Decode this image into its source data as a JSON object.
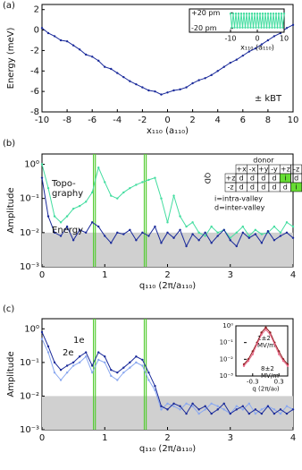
{
  "chart_data": [
    {
      "type": "line",
      "panel_label": "(a)",
      "ylabel": "Energy (meV)",
      "xlabel": "x₁₁₀ (a₁₁₀)",
      "annotation": "± kBT",
      "x": [
        -10,
        -9.5,
        -9,
        -8.5,
        -8,
        -7.5,
        -7,
        -6.5,
        -6,
        -5.5,
        -5,
        -4.5,
        -4,
        -3.5,
        -3,
        -2.5,
        -2,
        -1.5,
        -1,
        -0.5,
        0,
        0.5,
        1,
        1.5,
        2,
        2.5,
        3,
        3.5,
        4,
        4.5,
        5,
        5.5,
        6,
        6.5,
        7,
        7.5,
        8,
        8.5,
        9,
        9.5,
        10
      ],
      "series": [
        {
          "name": null,
          "color": "#1a2a9a",
          "values": [
            0.2,
            -0.3,
            -0.6,
            -1.0,
            -1.1,
            -1.5,
            -1.9,
            -2.4,
            -2.6,
            -3.0,
            -3.6,
            -3.8,
            -4.2,
            -4.6,
            -5.0,
            -5.3,
            -5.6,
            -5.9,
            -6.0,
            -6.3,
            -6.1,
            -5.9,
            -5.8,
            -5.6,
            -5.2,
            -4.9,
            -4.7,
            -4.4,
            -4.0,
            -3.6,
            -3.2,
            -2.9,
            -2.5,
            -2.1,
            -1.8,
            -1.4,
            -1.0,
            -0.6,
            -0.3,
            0.2,
            0.5
          ]
        }
      ],
      "xlim": [
        -10,
        10
      ],
      "xticks": [
        -10,
        -8,
        -6,
        -4,
        -2,
        0,
        2,
        4,
        6,
        8,
        10
      ],
      "ylim": [
        -8,
        2.5
      ],
      "yticks": [
        -8,
        -6,
        -4,
        -2,
        0,
        2
      ]
    },
    {
      "type": "line",
      "xlabel": "x₁₁₀ (a₁₁₀)",
      "x": [
        -10,
        -9.5,
        -9,
        -8.5,
        -8,
        -7.5,
        -7,
        -6.5,
        -6,
        -5.5,
        -5,
        -4.5,
        -4,
        -3.5,
        -3,
        -2.5,
        -2,
        -1.5,
        -1,
        -0.5,
        0,
        0.5,
        1,
        1.5,
        2,
        2.5,
        3,
        3.5,
        4,
        4.5,
        5,
        5.5,
        6,
        6.5,
        7,
        7.5,
        8,
        8.5,
        9,
        9.5,
        10
      ],
      "series": [
        {
          "name": null,
          "color": "#44dda0",
          "values": [
            18,
            -18,
            18,
            -18,
            18,
            -18,
            18,
            -18,
            18,
            -18,
            18,
            -18,
            18,
            -18,
            18,
            -18,
            18,
            -18,
            18,
            -18,
            18,
            -18,
            18,
            -18,
            18,
            -18,
            18,
            -18,
            18,
            -18,
            18,
            -18,
            18,
            -18,
            18,
            -18,
            18,
            -18,
            18,
            -18,
            18
          ]
        }
      ],
      "xlim": [
        -10,
        10
      ],
      "xticks": [
        -10,
        0,
        10
      ],
      "ylim": [
        -30,
        30
      ],
      "yticks": [
        {
          "value": 20,
          "label": "+20 pm"
        },
        {
          "value": -20,
          "label": "-20 pm"
        }
      ]
    },
    {
      "type": "line",
      "panel_label": "(b)",
      "ylabel": "Amplitude",
      "xlabel": "q₁₁₀ (2π/a₁₁₀)",
      "log_y": true,
      "shade_below": 0.01,
      "vlines": [
        0.82,
        0.85,
        1.63,
        1.66
      ],
      "vline_color": "#55cc33",
      "x": [
        0,
        0.1,
        0.2,
        0.3,
        0.4,
        0.5,
        0.6,
        0.7,
        0.8,
        0.9,
        1,
        1.1,
        1.2,
        1.3,
        1.4,
        1.5,
        1.6,
        1.7,
        1.8,
        1.9,
        2,
        2.1,
        2.2,
        2.3,
        2.4,
        2.5,
        2.6,
        2.7,
        2.8,
        2.9,
        3,
        3.1,
        3.2,
        3.3,
        3.4,
        3.5,
        3.6,
        3.7,
        3.8,
        3.9,
        4
      ],
      "series": [
        {
          "name": [
            "Topo-",
            "graphy"
          ],
          "color": "#44dda0",
          "values": [
            1.0,
            0.2,
            0.03,
            0.02,
            0.03,
            0.05,
            0.06,
            0.08,
            0.15,
            0.8,
            0.3,
            0.12,
            0.1,
            0.15,
            0.2,
            0.25,
            0.3,
            0.35,
            0.4,
            0.1,
            0.02,
            0.12,
            0.03,
            0.015,
            0.02,
            0.01,
            0.008,
            0.015,
            0.01,
            0.012,
            0.007,
            0.01,
            0.015,
            0.008,
            0.012,
            0.009,
            0.01,
            0.015,
            0.01,
            0.02,
            0.015
          ]
        },
        {
          "name": "Energy",
          "color": "#1a2a9a",
          "values": [
            0.4,
            0.03,
            0.01,
            0.008,
            0.015,
            0.006,
            0.012,
            0.01,
            0.02,
            0.015,
            0.008,
            0.005,
            0.01,
            0.009,
            0.012,
            0.006,
            0.01,
            0.008,
            0.015,
            0.005,
            0.01,
            0.007,
            0.012,
            0.004,
            0.009,
            0.006,
            0.01,
            0.005,
            0.008,
            0.012,
            0.006,
            0.004,
            0.01,
            0.007,
            0.009,
            0.005,
            0.011,
            0.006,
            0.008,
            0.01,
            0.007
          ]
        }
      ],
      "xlim": [
        0,
        4
      ],
      "xticks": [
        0,
        1,
        2,
        3,
        4
      ],
      "ylim": [
        0.001,
        2
      ],
      "yticks": [
        {
          "value": 0.001,
          "label": "10⁻³"
        },
        {
          "value": 0.01,
          "label": "10⁻²"
        },
        {
          "value": 0.1,
          "label": "10⁻¹"
        },
        {
          "value": 1,
          "label": "10⁰"
        }
      ],
      "table": {
        "header": "donor",
        "row_header": "QD",
        "columns": [
          "+x",
          "-x",
          "+y",
          "-y",
          "+z",
          "-z"
        ],
        "rows": [
          [
            "+z",
            "d",
            "d",
            "d",
            "d",
            "i",
            "d"
          ],
          [
            "-z",
            "d",
            "d",
            "d",
            "d",
            "d",
            "i"
          ]
        ],
        "notes": [
          "i=intra-valley",
          "d=inter-valley"
        ]
      }
    },
    {
      "type": "line",
      "panel_label": "(c)",
      "ylabel": "Amplitude",
      "xlabel": "q₁₁₀ (2π/a₁₁₀)",
      "log_y": true,
      "shade_below": 0.01,
      "vlines": [
        0.82,
        0.85,
        1.63,
        1.66
      ],
      "vline_color": "#55cc33",
      "x": [
        0,
        0.1,
        0.2,
        0.3,
        0.4,
        0.5,
        0.6,
        0.7,
        0.8,
        0.9,
        1,
        1.1,
        1.2,
        1.3,
        1.4,
        1.5,
        1.6,
        1.7,
        1.8,
        1.9,
        2,
        2.1,
        2.2,
        2.3,
        2.4,
        2.5,
        2.6,
        2.7,
        2.8,
        2.9,
        3,
        3.1,
        3.2,
        3.3,
        3.4,
        3.5,
        3.6,
        3.7,
        3.8,
        3.9,
        4
      ],
      "series": [
        {
          "name": "1e",
          "color": "#8aa8f0",
          "values": [
            0.5,
            0.2,
            0.05,
            0.03,
            0.05,
            0.08,
            0.1,
            0.15,
            0.05,
            0.12,
            0.1,
            0.04,
            0.03,
            0.05,
            0.07,
            0.1,
            0.08,
            0.03,
            0.015,
            0.004,
            0.006,
            0.005,
            0.004,
            0.006,
            0.005,
            0.003,
            0.004,
            0.006,
            0.005,
            0.004,
            0.003,
            0.005,
            0.004,
            0.006,
            0.003,
            0.004,
            0.005,
            0.004,
            0.003,
            0.005,
            0.004
          ]
        },
        {
          "name": "2e",
          "color": "#1a2a9a",
          "values": [
            0.8,
            0.3,
            0.1,
            0.06,
            0.08,
            0.1,
            0.15,
            0.2,
            0.08,
            0.2,
            0.15,
            0.06,
            0.05,
            0.07,
            0.1,
            0.15,
            0.12,
            0.05,
            0.02,
            0.005,
            0.004,
            0.006,
            0.005,
            0.003,
            0.006,
            0.004,
            0.005,
            0.003,
            0.004,
            0.006,
            0.003,
            0.004,
            0.005,
            0.003,
            0.004,
            0.003,
            0.005,
            0.003,
            0.004,
            0.003,
            0.004
          ]
        }
      ],
      "xlim": [
        0,
        4
      ],
      "xticks": [
        0,
        1,
        2,
        3,
        4
      ],
      "ylim": [
        0.001,
        2
      ],
      "yticks": [
        {
          "value": 0.001,
          "label": "10⁻³"
        },
        {
          "value": 0.01,
          "label": "10⁻²"
        },
        {
          "value": 0.1,
          "label": "10⁻¹"
        },
        {
          "value": 1,
          "label": "10⁰"
        }
      ]
    },
    {
      "type": "line",
      "xlabel": "q (2π/a₀)",
      "log_y": true,
      "x": [
        -0.5,
        -0.4,
        -0.3,
        -0.2,
        -0.1,
        0,
        0.1,
        0.2,
        0.3,
        0.4,
        0.5
      ],
      "series": [
        {
          "name": [
            "1±2",
            "MV/m"
          ],
          "color": "#8b1a1a",
          "values": [
            0.005,
            0.01,
            0.03,
            0.1,
            0.4,
            0.8,
            0.4,
            0.1,
            0.03,
            0.01,
            0.005
          ]
        },
        {
          "name": [
            "8±2",
            "MV/m"
          ],
          "color": "#e86a8a",
          "values": [
            0.004,
            0.008,
            0.02,
            0.08,
            0.3,
            0.6,
            0.3,
            0.08,
            0.02,
            0.008,
            0.004
          ]
        }
      ],
      "xlim": [
        -0.5,
        0.5
      ],
      "xticks": [
        -0.3,
        0.3
      ],
      "ylim": [
        0.001,
        1
      ],
      "yticks": [
        {
          "value": 0.001,
          "label": "10⁻³"
        },
        {
          "value": 0.01,
          "label": "10⁻²"
        },
        {
          "value": 0.1,
          "label": "10⁻¹"
        },
        {
          "value": 1,
          "label": "10⁰"
        }
      ]
    }
  ]
}
